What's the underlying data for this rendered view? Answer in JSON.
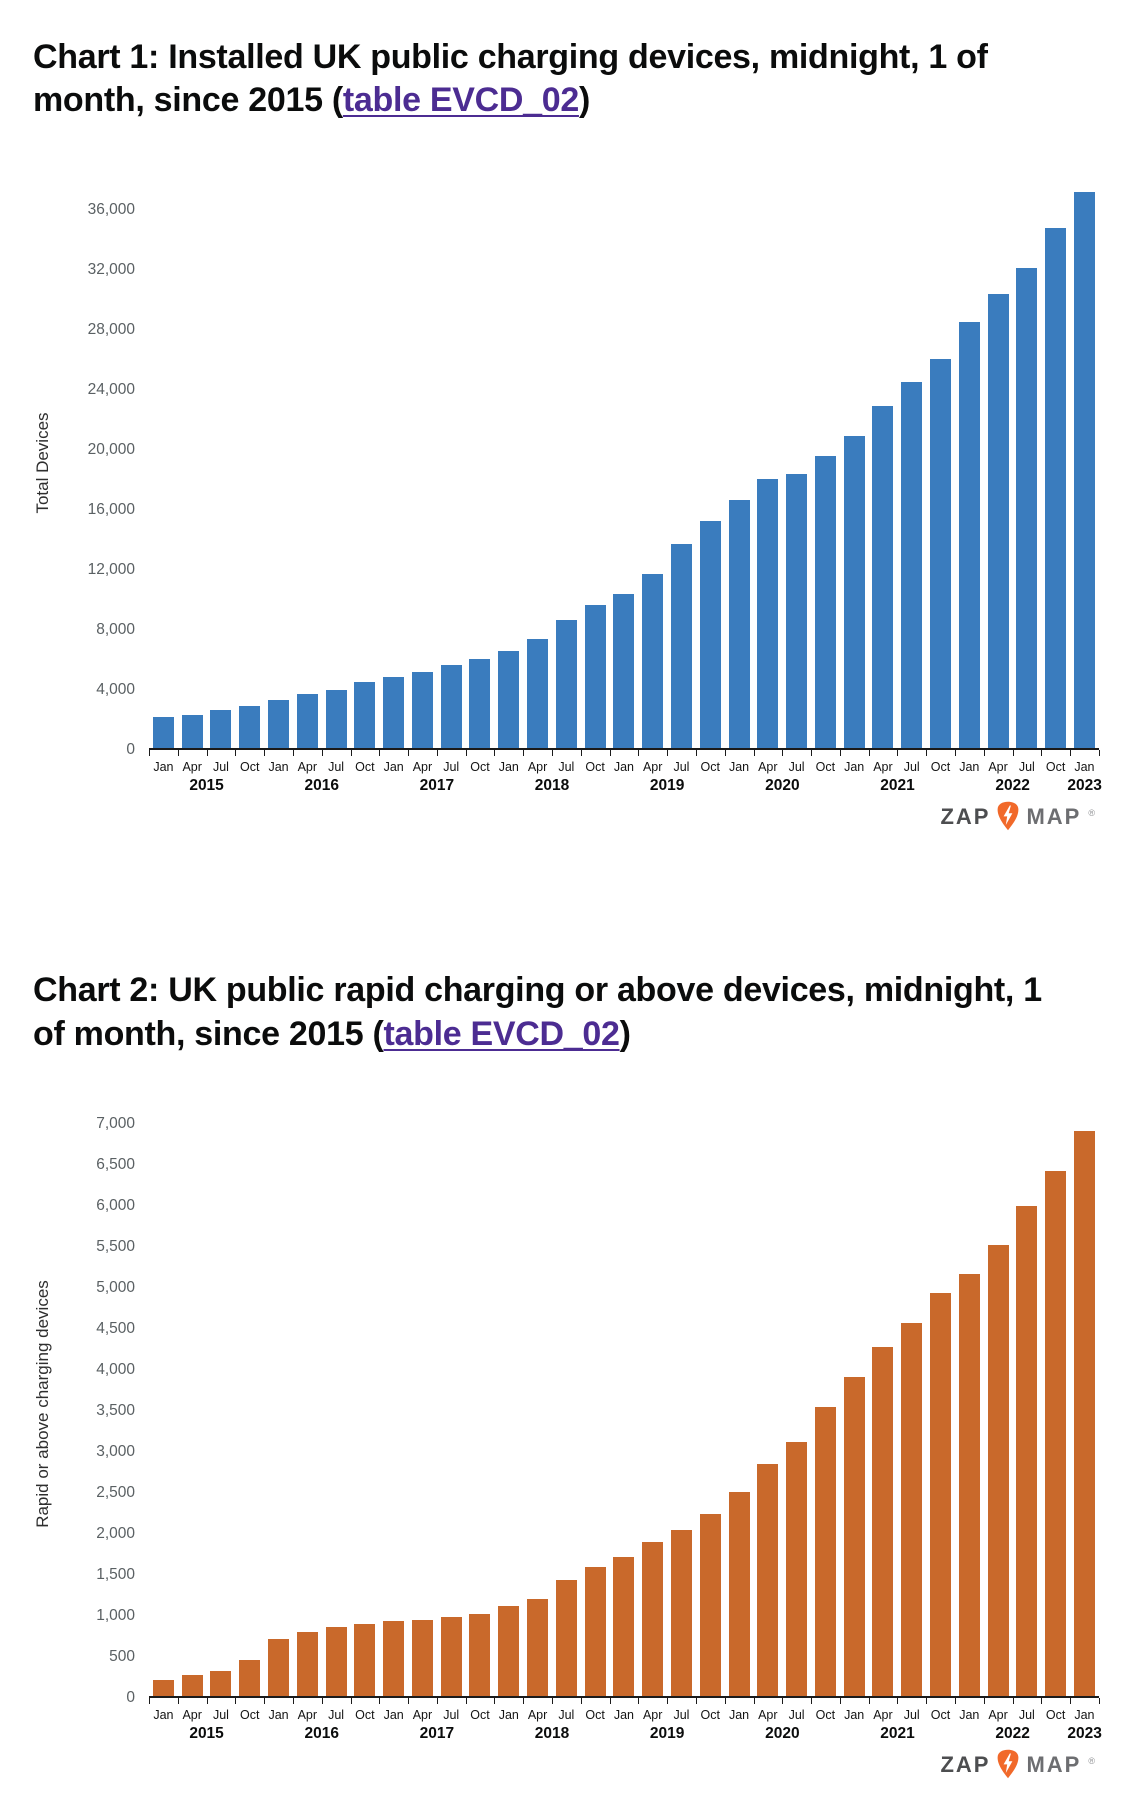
{
  "logo": {
    "zap": "ZAP",
    "map": "MAP",
    "registered": "®",
    "pin_color": "#f1692a",
    "bolt_color": "#ffffff"
  },
  "chart_data": [
    {
      "type": "bar",
      "title_prefix": "Chart 1: Installed UK public charging devices, midnight, 1 of month, since 2015 (",
      "title_link": "table EVCD_02",
      "title_suffix": ")",
      "ylabel": "Total Devices",
      "bar_color": "#3a7cbe",
      "ylim": [
        0,
        36000
      ],
      "ytick_step": 4000,
      "grid": false,
      "x_months": [
        "Jan",
        "Apr",
        "Jul",
        "Oct",
        "Jan",
        "Apr",
        "Jul",
        "Oct",
        "Jan",
        "Apr",
        "Jul",
        "Oct",
        "Jan",
        "Apr",
        "Jul",
        "Oct",
        "Jan",
        "Apr",
        "Jul",
        "Oct",
        "Jan",
        "Apr",
        "Jul",
        "Oct",
        "Jan",
        "Apr",
        "Jul",
        "Oct",
        "Jan",
        "Apr",
        "Jul",
        "Oct",
        "Jan"
      ],
      "x_years": [
        "2015",
        "2016",
        "2017",
        "2018",
        "2019",
        "2020",
        "2021",
        "2022",
        "2023"
      ],
      "values": [
        2050,
        2200,
        2550,
        2800,
        3200,
        3600,
        3850,
        4400,
        4700,
        5050,
        5500,
        5900,
        6450,
        7250,
        8500,
        9500,
        10270,
        11600,
        13600,
        15100,
        16500,
        17950,
        18270,
        19490,
        20780,
        22790,
        24370,
        25930,
        28380,
        30290,
        32010,
        34640,
        37055
      ]
    },
    {
      "type": "bar",
      "title_prefix": "Chart 2: UK public rapid charging or above devices, midnight, 1 of month, since 2015 (",
      "title_link": "table EVCD_02",
      "title_suffix": ")",
      "ylabel": "Rapid or above charging devices",
      "bar_color": "#c9692b",
      "ylim": [
        0,
        7000
      ],
      "ytick_step": 500,
      "grid": false,
      "x_months": [
        "Jan",
        "Apr",
        "Jul",
        "Oct",
        "Jan",
        "Apr",
        "Jul",
        "Oct",
        "Jan",
        "Apr",
        "Jul",
        "Oct",
        "Jan",
        "Apr",
        "Jul",
        "Oct",
        "Jan",
        "Apr",
        "Jul",
        "Oct",
        "Jan",
        "Apr",
        "Jul",
        "Oct",
        "Jan",
        "Apr",
        "Jul",
        "Oct",
        "Jan",
        "Apr",
        "Jul",
        "Oct",
        "Jan"
      ],
      "x_years": [
        "2015",
        "2016",
        "2017",
        "2018",
        "2019",
        "2020",
        "2021",
        "2022",
        "2023"
      ],
      "values": [
        200,
        260,
        310,
        440,
        700,
        785,
        840,
        875,
        910,
        925,
        960,
        1000,
        1100,
        1180,
        1420,
        1570,
        1700,
        1875,
        2020,
        2220,
        2490,
        2830,
        3100,
        3530,
        3890,
        4255,
        4550,
        4915,
        5150,
        5495,
        5975,
        6400,
        6890
      ]
    }
  ]
}
